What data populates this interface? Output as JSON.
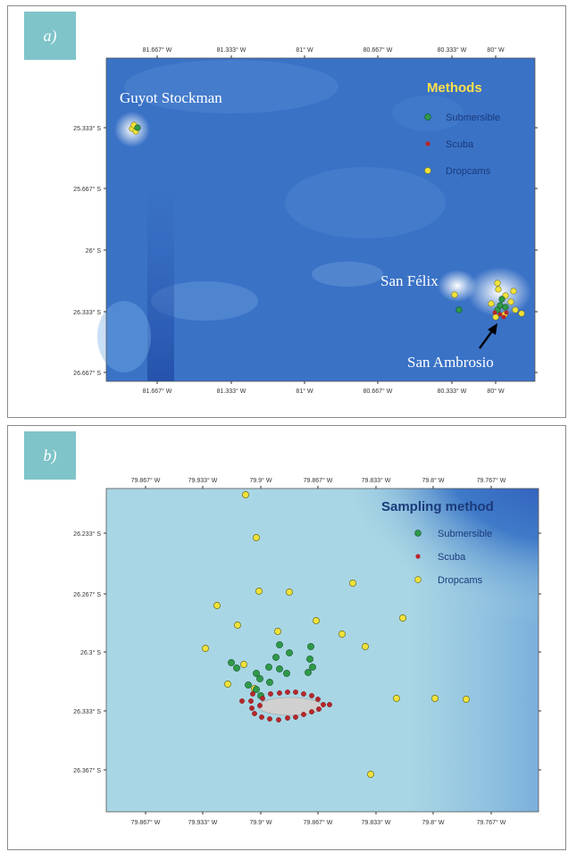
{
  "panel_a": {
    "label": "a)",
    "top_ticks": [
      "81.667° W",
      "81.333° W",
      "81° W",
      "80.667° W",
      "80.333° W",
      "80° W"
    ],
    "bottom_ticks": [
      "81.667° W",
      "81.333° W",
      "81° W",
      "80.667° W",
      "80.333° W",
      "80° W"
    ],
    "left_ticks": [
      "25.333° S",
      "25.667° S",
      "26° S",
      "26.333° S",
      "26.667° S"
    ],
    "places": {
      "guyot": "Guyot Stockman",
      "san_felix": "San Félix",
      "san_ambrosio": "San Ambrosio"
    },
    "legend": {
      "title": "Methods",
      "items": [
        {
          "label": "Submersible",
          "color": "#2e9a48"
        },
        {
          "label": "Scuba",
          "color": "#b8262a"
        },
        {
          "label": "Dropcams",
          "color": "#f1e23a"
        }
      ]
    },
    "colors": {
      "ocean": "#3a72c6",
      "legend_title": "#ffe04a",
      "legend_text": "#1a3a7a"
    }
  },
  "panel_b": {
    "label": "b)",
    "top_ticks": [
      "79.867° W",
      "79.933° W",
      "79.9° W",
      "79.867° W",
      "79.833° W",
      "79.8° W",
      "79.767° W"
    ],
    "bottom_ticks": [
      "79.867° W",
      "79.933° W",
      "79.9° W",
      "79.867° W",
      "79.833° W",
      "79.8° W",
      "79.767° W"
    ],
    "left_ticks": [
      "26.233° S",
      "26.267° S",
      "26.3° S",
      "26.333° S",
      "26.367° S"
    ],
    "legend": {
      "title": "Sampling method",
      "items": [
        {
          "label": "Submersible",
          "color": "#2e9a48"
        },
        {
          "label": "Scuba",
          "color": "#b8262a"
        },
        {
          "label": "Dropcams",
          "color": "#f1e23a"
        }
      ]
    },
    "colors": {
      "shallow": "#a9d6e4",
      "deep": "#2c55b8",
      "legend_title": "#1a3a7a",
      "legend_text": "#1a3a7a"
    }
  }
}
